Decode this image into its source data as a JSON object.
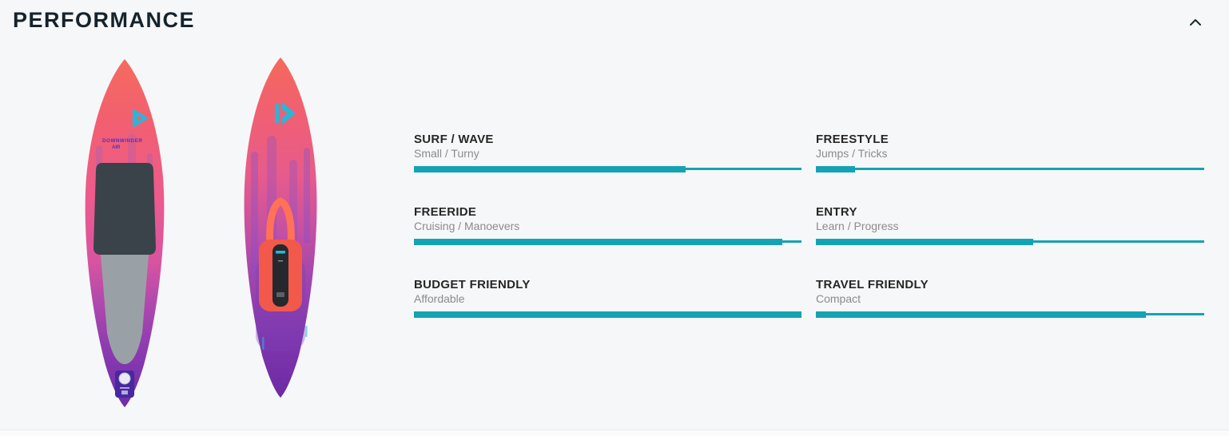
{
  "header": {
    "title": "PERFORMANCE",
    "collapse_icon": "chevron-up"
  },
  "product": {
    "board_label_line1": "DOWNWINDER",
    "board_label_line2": "AIR",
    "brand_logo": "duotone-arrow",
    "brand_teal": "#2cb5d9"
  },
  "performance": {
    "bar_color": "#14a3b4",
    "items": [
      {
        "id": "surf-wave",
        "title": "SURF / WAVE",
        "subtitle": "Small / Turny",
        "value": 70
      },
      {
        "id": "freestyle",
        "title": "FREESTYLE",
        "subtitle": "Jumps / Tricks",
        "value": 10
      },
      {
        "id": "freeride",
        "title": "FREERIDE",
        "subtitle": "Cruising / Manoevers",
        "value": 95
      },
      {
        "id": "entry",
        "title": "ENTRY",
        "subtitle": "Learn / Progress",
        "value": 56
      },
      {
        "id": "budget-friendly",
        "title": "BUDGET FRIENDLY",
        "subtitle": "Affordable",
        "value": 100
      },
      {
        "id": "travel-friendly",
        "title": "TRAVEL FRIENDLY",
        "subtitle": "Compact",
        "value": 85
      }
    ]
  }
}
